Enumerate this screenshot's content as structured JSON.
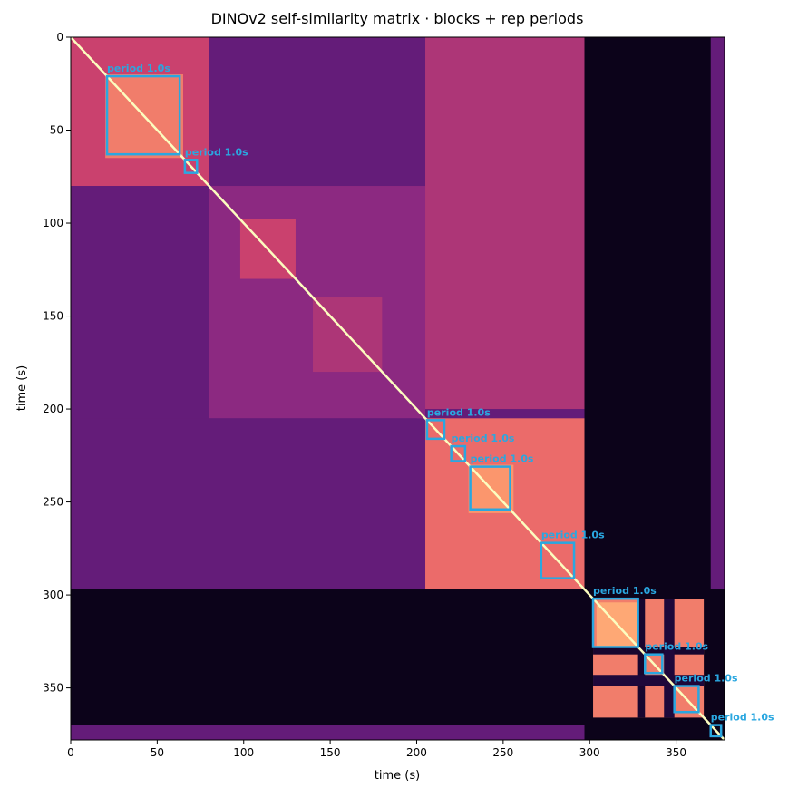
{
  "chart_data": {
    "type": "heatmap",
    "title": "DINOv2 self-similarity matrix · blocks + rep periods",
    "x_label": "time (s)",
    "y_label": "time (s)",
    "xlim": [
      0,
      378
    ],
    "ylim": [
      0,
      378
    ],
    "xticks": [
      0,
      50,
      100,
      150,
      200,
      250,
      300,
      350
    ],
    "yticks": [
      0,
      50,
      100,
      150,
      200,
      250,
      300,
      350
    ],
    "colormap": "magma",
    "regions": [
      {
        "x": [
          0,
          378
        ],
        "y": [
          0,
          378
        ],
        "v": 0.04
      },
      {
        "x": [
          0,
          297
        ],
        "y": [
          0,
          297
        ],
        "v": 0.3
      },
      {
        "x": [
          370,
          378
        ],
        "y": [
          0,
          297
        ],
        "v": 0.3
      },
      {
        "x": [
          0,
          297
        ],
        "y": [
          370,
          378
        ],
        "v": 0.3
      },
      {
        "x": [
          0,
          80
        ],
        "y": [
          0,
          80
        ],
        "v": 0.55
      },
      {
        "x": [
          20,
          65
        ],
        "y": [
          20,
          65
        ],
        "v": 0.72
      },
      {
        "x": [
          80,
          205
        ],
        "y": [
          80,
          205
        ],
        "v": 0.4
      },
      {
        "x": [
          98,
          130
        ],
        "y": [
          98,
          130
        ],
        "v": 0.55
      },
      {
        "x": [
          140,
          180
        ],
        "y": [
          140,
          180
        ],
        "v": 0.48
      },
      {
        "x": [
          205,
          297
        ],
        "y": [
          0,
          200
        ],
        "v": 0.48
      },
      {
        "x": [
          0,
          200
        ],
        "y": [
          205,
          297
        ],
        "v": 0.3
      },
      {
        "x": [
          205,
          297
        ],
        "y": [
          205,
          297
        ],
        "v": 0.68
      },
      {
        "x": [
          230,
          256
        ],
        "y": [
          230,
          256
        ],
        "v": 0.78
      },
      {
        "x": [
          302,
          366
        ],
        "y": [
          302,
          366
        ],
        "v": 0.72
      },
      {
        "x": [
          328,
          332
        ],
        "y": [
          302,
          366
        ],
        "v": 0.08
      },
      {
        "x": [
          302,
          366
        ],
        "y": [
          328,
          332
        ],
        "v": 0.08
      },
      {
        "x": [
          343,
          349
        ],
        "y": [
          302,
          366
        ],
        "v": 0.1
      },
      {
        "x": [
          302,
          366
        ],
        "y": [
          343,
          349
        ],
        "v": 0.1
      },
      {
        "x": [
          304,
          328
        ],
        "y": [
          304,
          328
        ],
        "v": 0.82
      }
    ],
    "diagonal": 1,
    "box_color": "#2aa7e0",
    "boxes": [
      {
        "start": 21,
        "end": 63,
        "label": "period 1.0s"
      },
      {
        "start": 66,
        "end": 73,
        "label": "period 1.0s"
      },
      {
        "start": 206,
        "end": 216,
        "label": "period 1.0s"
      },
      {
        "start": 220,
        "end": 228,
        "label": "period 1.0s"
      },
      {
        "start": 231,
        "end": 254,
        "label": "period 1.0s"
      },
      {
        "start": 272,
        "end": 291,
        "label": "period 1.0s"
      },
      {
        "start": 302,
        "end": 328,
        "label": "period 1.0s"
      },
      {
        "start": 332,
        "end": 342,
        "label": "period 1.0s"
      },
      {
        "start": 349,
        "end": 363,
        "label": "period 1.0s"
      },
      {
        "start": 370,
        "end": 376,
        "label": "period 1.0s"
      }
    ]
  }
}
